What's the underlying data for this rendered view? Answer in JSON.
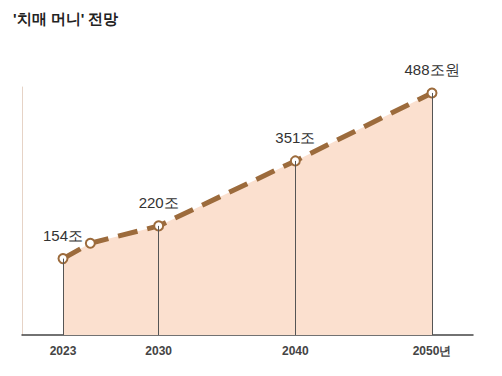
{
  "chart_data": {
    "type": "line",
    "title": "'치매 머니' 전망",
    "x": [
      2023,
      2025,
      2030,
      2040,
      2050
    ],
    "values": [
      154,
      185,
      220,
      351,
      488
    ],
    "value_labels": [
      "154조",
      null,
      "220조",
      "351조",
      "488조원"
    ],
    "color": "#9c6b3c",
    "xlim": [
      2020,
      2053
    ],
    "xticks": [
      2023,
      2030,
      2040,
      {
        "value": 2050,
        "label": "2050년"
      }
    ],
    "ylim": [
      0,
      500
    ],
    "yticks": [],
    "grid": false,
    "data_labels": true,
    "tick_labels": "x",
    "marker": "circle",
    "line_style": "dashed"
  }
}
